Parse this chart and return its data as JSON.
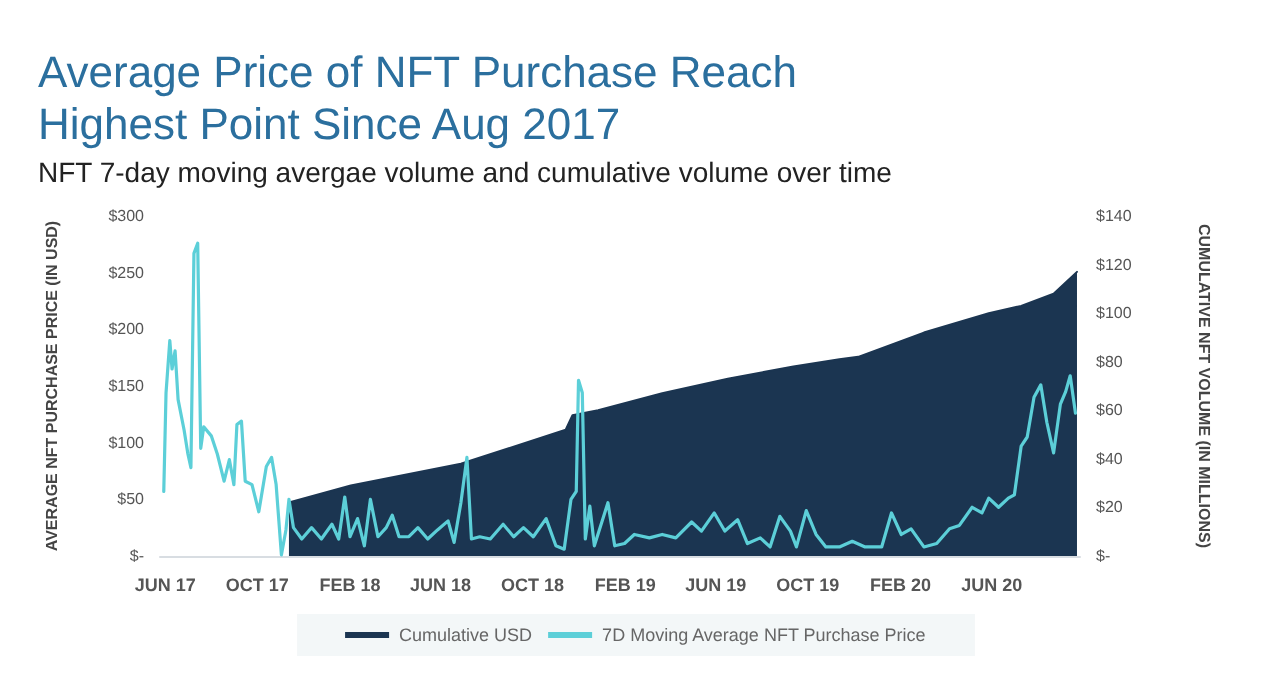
{
  "chart_data": {
    "type": "line",
    "title": "Average Price of NFT Purchase Reach Highest Point Since Aug 2017",
    "subtitle": "NFT 7-day moving avergae volume and cumulative volume over time",
    "ylabel": "AVERAGE NFT PURCHASE PRICE (IN USD)",
    "y2label": "CUMULATIVE NFT VOLUME (IN MILLIONS)",
    "xlim": [
      "2017-05-25",
      "2020-09-26"
    ],
    "xticks": [
      {
        "value": "2017-06-01",
        "label": "JUN 17"
      },
      {
        "value": "2017-10-01",
        "label": "OCT 17"
      },
      {
        "value": "2018-02-01",
        "label": "FEB 18"
      },
      {
        "value": "2018-06-01",
        "label": "JUN 18"
      },
      {
        "value": "2018-10-01",
        "label": "OCT 18"
      },
      {
        "value": "2019-02-01",
        "label": "FEB 19"
      },
      {
        "value": "2019-06-01",
        "label": "JUN 19"
      },
      {
        "value": "2019-10-01",
        "label": "OCT 19"
      },
      {
        "value": "2020-02-01",
        "label": "FEB 20"
      },
      {
        "value": "2020-06-01",
        "label": "JUN 20"
      }
    ],
    "ylim": [
      0,
      300
    ],
    "yticks": [
      {
        "value": 0,
        "label": "$-"
      },
      {
        "value": 50,
        "label": "$50"
      },
      {
        "value": 100,
        "label": "$100"
      },
      {
        "value": 150,
        "label": "$150"
      },
      {
        "value": 200,
        "label": "$200"
      },
      {
        "value": 250,
        "label": "$250"
      },
      {
        "value": 300,
        "label": "$300"
      }
    ],
    "y2lim": [
      0,
      140
    ],
    "y2ticks": [
      {
        "value": 0,
        "label": "$-"
      },
      {
        "value": 20,
        "label": "$20"
      },
      {
        "value": 40,
        "label": "$40"
      },
      {
        "value": 60,
        "label": "$60"
      },
      {
        "value": 80,
        "label": "$80"
      },
      {
        "value": 100,
        "label": "$100"
      },
      {
        "value": 120,
        "label": "$120"
      },
      {
        "value": 140,
        "label": "$140"
      }
    ],
    "legend": "bottom",
    "marker": "none",
    "grid": false,
    "series": [
      {
        "name": "Cumulative USD",
        "type": "area",
        "axis": "y2",
        "color": "#1b3551",
        "x": [
          "2017-11-12",
          "2018-02-02",
          "2018-06-28",
          "2018-11-14",
          "2018-11-23",
          "2018-12-27",
          "2019-03-22",
          "2019-06-17",
          "2019-09-12",
          "2019-11-12",
          "2019-12-07",
          "2020-03-03",
          "2020-05-28",
          "2020-07-10",
          "2020-08-22",
          "2020-09-22"
        ],
        "values": [
          22,
          29,
          38,
          52,
          58,
          60,
          67,
          73,
          78,
          81,
          82,
          92,
          100,
          103,
          108,
          117
        ]
      },
      {
        "name": "7D Moving Average NFT Purchase Price",
        "axis": "y",
        "color": "#5ccfd8",
        "x": [
          "2017-05-30",
          "2017-06-02",
          "2017-06-07",
          "2017-06-10",
          "2017-06-14",
          "2017-06-18",
          "2017-06-26",
          "2017-07-01",
          "2017-07-05",
          "2017-07-09",
          "2017-07-14",
          "2017-07-18",
          "2017-07-22",
          "2017-08-01",
          "2017-08-09",
          "2017-08-18",
          "2017-08-25",
          "2017-08-31",
          "2017-09-04",
          "2017-09-10",
          "2017-09-15",
          "2017-09-24",
          "2017-10-03",
          "2017-10-13",
          "2017-10-20",
          "2017-10-26",
          "2017-11-02",
          "2017-11-08",
          "2017-11-12",
          "2017-11-18",
          "2017-11-29",
          "2017-12-12",
          "2017-12-25",
          "2018-01-08",
          "2018-01-17",
          "2018-01-25",
          "2018-02-01",
          "2018-02-11",
          "2018-02-20",
          "2018-02-28",
          "2018-03-10",
          "2018-03-21",
          "2018-03-29",
          "2018-04-07",
          "2018-04-20",
          "2018-05-02",
          "2018-05-15",
          "2018-05-28",
          "2018-06-11",
          "2018-06-19",
          "2018-06-28",
          "2018-07-06",
          "2018-07-12",
          "2018-07-23",
          "2018-08-06",
          "2018-08-23",
          "2018-09-06",
          "2018-09-19",
          "2018-10-02",
          "2018-10-19",
          "2018-11-01",
          "2018-11-12",
          "2018-11-21",
          "2018-11-28",
          "2018-12-01",
          "2018-12-06",
          "2018-12-10",
          "2018-12-16",
          "2018-12-22",
          "2019-01-09",
          "2019-01-18",
          "2019-01-31",
          "2019-02-13",
          "2019-03-05",
          "2019-03-22",
          "2019-04-09",
          "2019-04-30",
          "2019-05-13",
          "2019-05-30",
          "2019-06-13",
          "2019-06-30",
          "2019-07-13",
          "2019-07-30",
          "2019-08-12",
          "2019-08-25",
          "2019-09-08",
          "2019-09-16",
          "2019-09-29",
          "2019-10-12",
          "2019-10-25",
          "2019-11-12",
          "2019-11-29",
          "2019-12-16",
          "2020-01-07",
          "2020-01-20",
          "2020-02-02",
          "2020-02-15",
          "2020-03-03",
          "2020-03-20",
          "2020-04-06",
          "2020-04-19",
          "2020-05-06",
          "2020-05-19",
          "2020-05-28",
          "2020-06-10",
          "2020-06-23",
          "2020-07-01",
          "2020-07-10",
          "2020-07-18",
          "2020-07-27",
          "2020-08-05",
          "2020-08-13",
          "2020-08-22",
          "2020-08-31",
          "2020-09-07",
          "2020-09-13",
          "2020-09-20"
        ],
        "values": [
          57,
          144,
          190,
          165,
          181,
          138,
          111,
          90,
          78,
          267,
          276,
          95,
          114,
          106,
          90,
          66,
          85,
          63,
          116,
          119,
          66,
          63,
          39,
          79,
          87,
          63,
          1,
          23,
          50,
          25,
          15,
          25,
          15,
          28,
          15,
          52,
          17,
          33,
          9,
          50,
          17,
          25,
          36,
          17,
          17,
          25,
          15,
          23,
          31,
          12,
          47,
          87,
          15,
          17,
          15,
          28,
          17,
          25,
          17,
          33,
          9,
          6,
          50,
          57,
          155,
          144,
          15,
          44,
          9,
          47,
          9,
          11,
          19,
          16,
          19,
          16,
          30,
          22,
          38,
          22,
          32,
          11,
          16,
          8,
          35,
          22,
          8,
          40,
          19,
          8,
          8,
          13,
          8,
          8,
          38,
          19,
          24,
          8,
          11,
          24,
          27,
          43,
          38,
          51,
          43,
          51,
          54,
          97,
          105,
          140,
          151,
          118,
          91,
          134,
          145,
          159,
          126
        ]
      }
    ]
  }
}
